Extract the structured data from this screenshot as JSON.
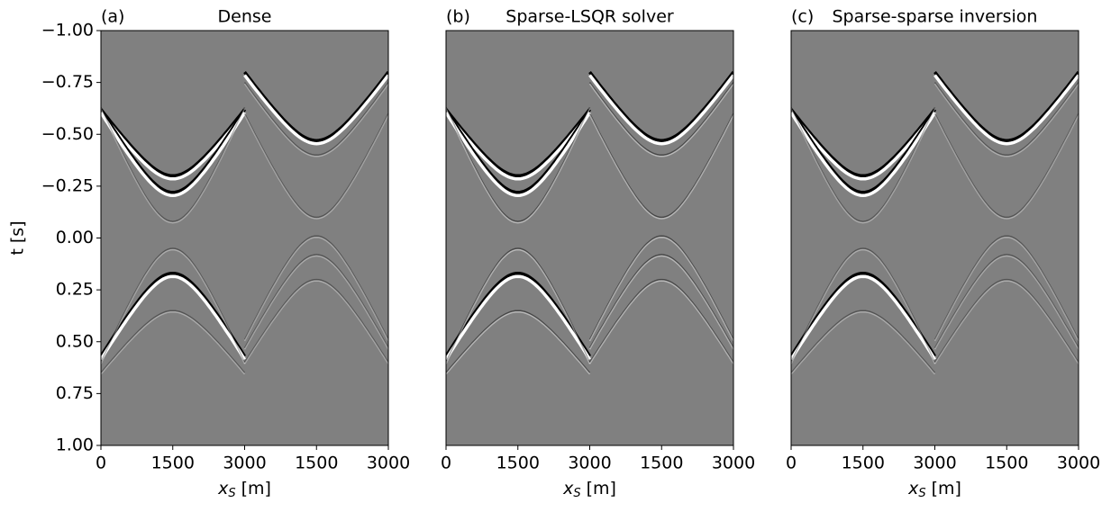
{
  "chart_data": [
    {
      "type": "image",
      "label": "(a)",
      "title": "Dense",
      "xlabel": [
        "x",
        "S",
        "[m]"
      ],
      "ylabel": "t [s]",
      "xlim": [
        0,
        6000
      ],
      "xticks": [
        0,
        1500,
        3000,
        {
          "value": 4500,
          "label": "1500"
        },
        {
          "value": 6000,
          "label": "3000"
        }
      ],
      "ylim": [
        -1,
        1
      ],
      "yticks": [
        {
          "value": -1,
          "label": "−1.00"
        },
        {
          "value": -0.75,
          "label": "−0.75"
        },
        {
          "value": -0.5,
          "label": "−0.50"
        },
        {
          "value": -0.25,
          "label": "−0.25"
        },
        {
          "value": 0,
          "label": "0.00"
        },
        0.25,
        {
          "value": 0.5,
          "label": "0.50"
        },
        0.75,
        {
          "value": 1,
          "label": "1.00"
        }
      ]
    },
    {
      "type": "image",
      "label": "(b)",
      "title": "Sparse-LSQR solver",
      "xlabel": [
        "x",
        "S",
        "[m]"
      ],
      "xlim": [
        0,
        6000
      ],
      "xticks": [
        0,
        1500,
        3000,
        {
          "value": 4500,
          "label": "1500"
        },
        {
          "value": 6000,
          "label": "3000"
        }
      ],
      "ylim": [
        -1,
        1
      ]
    },
    {
      "type": "image",
      "label": "(c)",
      "title": "Sparse-sparse inversion",
      "xlabel": [
        "x",
        "S",
        "[m]"
      ],
      "xlim": [
        0,
        6000
      ],
      "xticks": [
        0,
        1500,
        3000,
        {
          "value": 4500,
          "label": "1500"
        },
        {
          "value": 6000,
          "label": "3000"
        }
      ],
      "ylim": [
        -1,
        1
      ]
    }
  ]
}
